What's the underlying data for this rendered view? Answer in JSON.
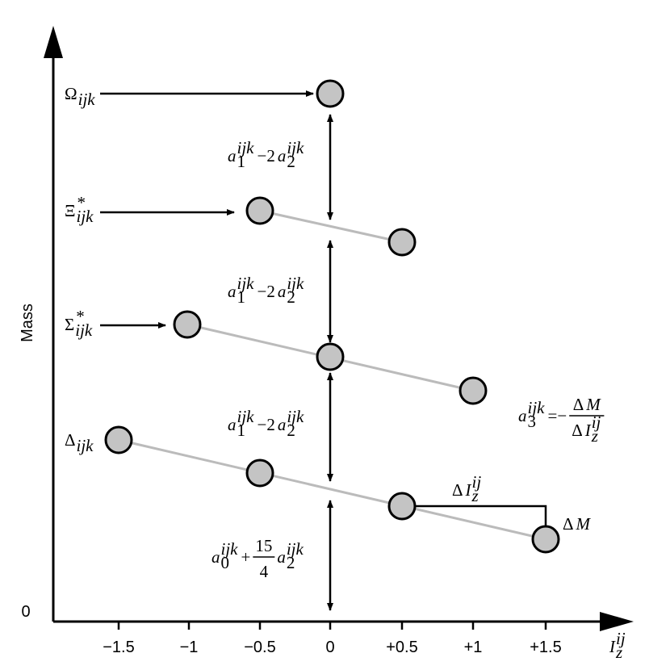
{
  "axis": {
    "y_label": "Mass",
    "origin": "0",
    "x_ticks": [
      "−1.5",
      "−1",
      "−0.5",
      "0",
      "+0.5",
      "+1",
      "+1.5"
    ],
    "x_label": [
      {
        "t": "I",
        "sup": "ij",
        "sub": "z"
      }
    ]
  },
  "multiplets": [
    {
      "label": [
        {
          "t": "Ω",
          "sub": "ijk"
        }
      ]
    },
    {
      "label": [
        {
          "t": "Ξ",
          "sup": "*",
          "sub": "ijk"
        }
      ]
    },
    {
      "label": [
        {
          "t": "Σ",
          "sup": "*",
          "sub": "ijk"
        }
      ]
    },
    {
      "label": [
        {
          "t": "Δ",
          "sub": "ijk"
        }
      ]
    }
  ],
  "splittings": [
    [
      {
        "t": "a",
        "sup": "ijk",
        "sub": "1"
      },
      {
        "t": "−2"
      },
      {
        "t": "a",
        "sup": "ijk",
        "sub": "2"
      }
    ],
    [
      {
        "t": "a",
        "sup": "ijk",
        "sub": "1"
      },
      {
        "t": "−2"
      },
      {
        "t": "a",
        "sup": "ijk",
        "sub": "2"
      }
    ],
    [
      {
        "t": "a",
        "sup": "ijk",
        "sub": "1"
      },
      {
        "t": "−2"
      },
      {
        "t": "a",
        "sup": "ijk",
        "sub": "2"
      }
    ],
    [
      {
        "t": "a",
        "sup": "ijk",
        "sub": "0"
      },
      {
        "t": "+"
      },
      {
        "num": [
          {
            "t": "15"
          }
        ],
        "den": [
          {
            "t": "4"
          }
        ]
      },
      {
        "t": "a",
        "sup": "ijk",
        "sub": "2"
      }
    ]
  ],
  "relation": [
    {
      "t": "a",
      "sup": "ijk",
      "sub": "3"
    },
    {
      "t": "=−"
    },
    {
      "num": [
        {
          "t": "Δ"
        },
        {
          "t": "M"
        }
      ],
      "den": [
        {
          "t": "Δ"
        },
        {
          "t": "I",
          "sup": "ij",
          "sub": "z"
        }
      ]
    }
  ],
  "delta_I": [
    {
      "t": "Δ"
    },
    {
      "t": "I",
      "sup": "ij",
      "sub": "z"
    }
  ],
  "delta_M": [
    {
      "t": "Δ"
    },
    {
      "t": "M"
    }
  ]
}
